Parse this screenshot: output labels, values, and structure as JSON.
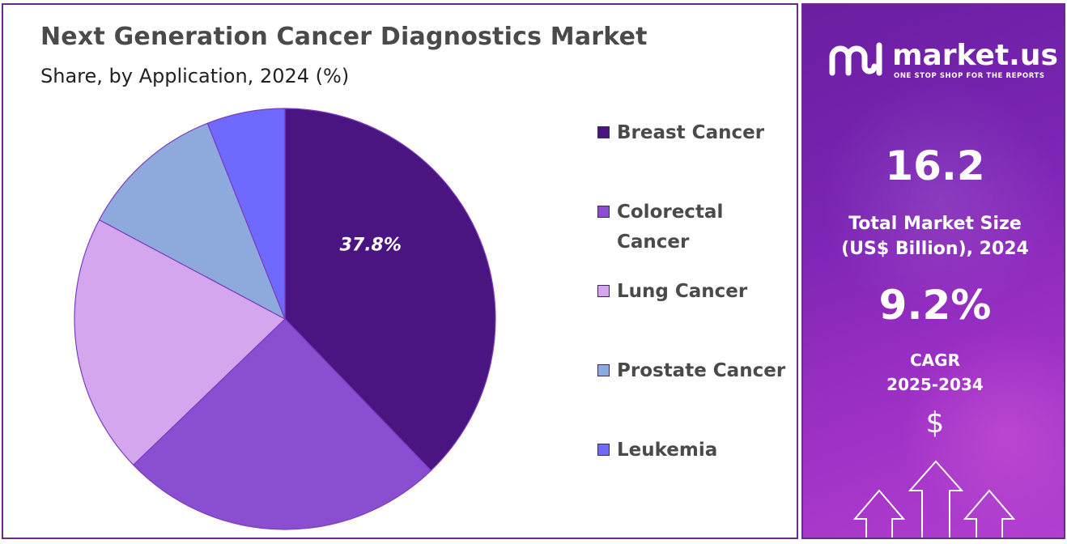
{
  "header": {
    "title": "Next Generation Cancer Diagnostics Market",
    "subtitle": "Share, by Application, 2024 (%)"
  },
  "chart_data": {
    "type": "pie",
    "title": "Next Generation Cancer Diagnostics Market",
    "subtitle": "Share, by Application, 2024 (%)",
    "categories": [
      "Breast Cancer",
      "Colorectal Cancer",
      "Lung Cancer",
      "Prostate Cancer",
      "Leukemia"
    ],
    "values": [
      37.8,
      25.0,
      20.0,
      11.2,
      6.0
    ],
    "colors": [
      "#4b1581",
      "#8a4fd0",
      "#d4a6ee",
      "#8eaadc",
      "#6f69fe"
    ],
    "data_labels": [
      "37.8%",
      "",
      "",
      "",
      ""
    ],
    "legend_position": "right"
  },
  "legend": {
    "items": [
      {
        "label": "Breast Cancer",
        "color": "#4b1581"
      },
      {
        "label": "Colorectal Cancer",
        "color": "#8a4fd0"
      },
      {
        "label": "Lung Cancer",
        "color": "#d4a6ee"
      },
      {
        "label": "Prostate Cancer",
        "color": "#8eaadc"
      },
      {
        "label": "Leukemia",
        "color": "#6f69fe"
      }
    ]
  },
  "sidebar": {
    "brand": "market.us",
    "tagline": "ONE STOP SHOP FOR THE REPORTS",
    "market_size_value": "16.2",
    "market_size_label_line1": "Total Market Size",
    "market_size_label_line2": "(US$ Billion), 2024",
    "cagr_value": "9.2%",
    "cagr_label_line1": "CAGR",
    "cagr_label_line2": "2025-2034",
    "dollar_symbol": "$"
  }
}
